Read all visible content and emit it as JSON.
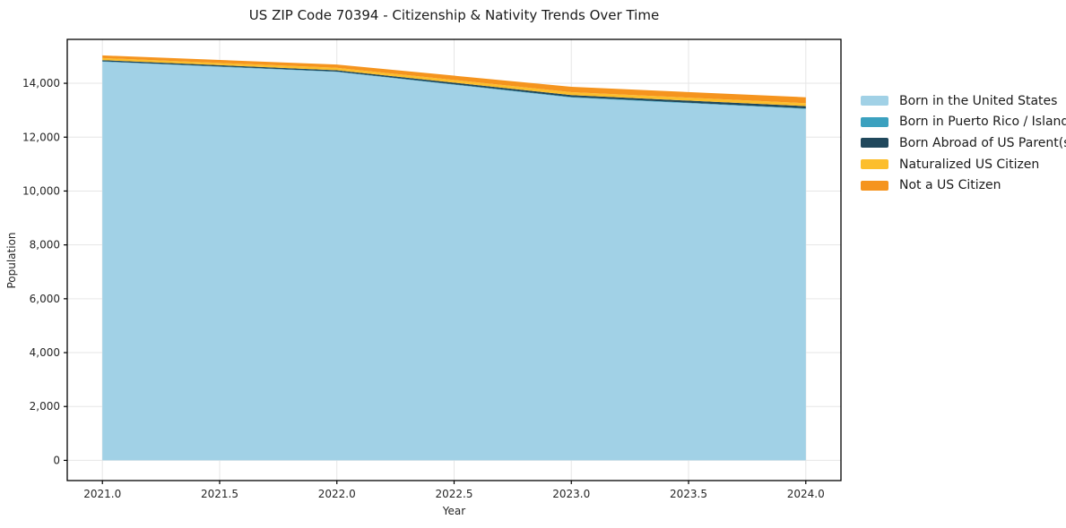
{
  "chart_data": {
    "type": "area",
    "stacked": true,
    "title": "US ZIP Code 70394 - Citizenship & Nativity Trends Over Time",
    "xlabel": "Year",
    "ylabel": "Population",
    "x": [
      2021,
      2022,
      2023,
      2024
    ],
    "series": [
      {
        "id": "born-us",
        "name": "Born in the United States",
        "color": "#a1d1e6",
        "values": [
          14800,
          14420,
          13470,
          13050
        ]
      },
      {
        "id": "born-pr",
        "name": "Born in Puerto Rico / Islands",
        "color": "#3ba1bf",
        "values": [
          15,
          15,
          20,
          20
        ]
      },
      {
        "id": "born-abroad",
        "name": "Born Abroad of US Parent(s)",
        "color": "#20485c",
        "values": [
          45,
          50,
          70,
          80
        ]
      },
      {
        "id": "naturalized",
        "name": "Naturalized US Citizen",
        "color": "#fcbe2c",
        "values": [
          75,
          90,
          110,
          110
        ]
      },
      {
        "id": "not-citizen",
        "name": "Not a US Citizen",
        "color": "#f5941e",
        "values": [
          100,
          120,
          200,
          220
        ]
      }
    ],
    "totals": [
      15035,
      14695,
      13870,
      13480
    ],
    "xlim": [
      2020.85,
      2024.15
    ],
    "ylim": [
      -750,
      15630
    ],
    "xticks": [
      {
        "value": 2021.0,
        "label": "2021.0"
      },
      {
        "value": 2021.5,
        "label": "2021.5"
      },
      {
        "value": 2022.0,
        "label": "2022.0"
      },
      {
        "value": 2022.5,
        "label": "2022.5"
      },
      {
        "value": 2023.0,
        "label": "2023.0"
      },
      {
        "value": 2023.5,
        "label": "2023.5"
      },
      {
        "value": 2024.0,
        "label": "2024.0"
      }
    ],
    "yticks": [
      {
        "value": 0,
        "label": "0"
      },
      {
        "value": 2000,
        "label": "2,000"
      },
      {
        "value": 4000,
        "label": "4,000"
      },
      {
        "value": 6000,
        "label": "6,000"
      },
      {
        "value": 8000,
        "label": "8,000"
      },
      {
        "value": 10000,
        "label": "10,000"
      },
      {
        "value": 12000,
        "label": "12,000"
      },
      {
        "value": 14000,
        "label": "14,000"
      }
    ],
    "grid": true,
    "legend_position": "right",
    "colors": {
      "background": "#ffffff",
      "grid": "#e6e6e6",
      "frame": "#000000",
      "tick_text": "#262626",
      "title_text": "#1a1a1a"
    }
  }
}
